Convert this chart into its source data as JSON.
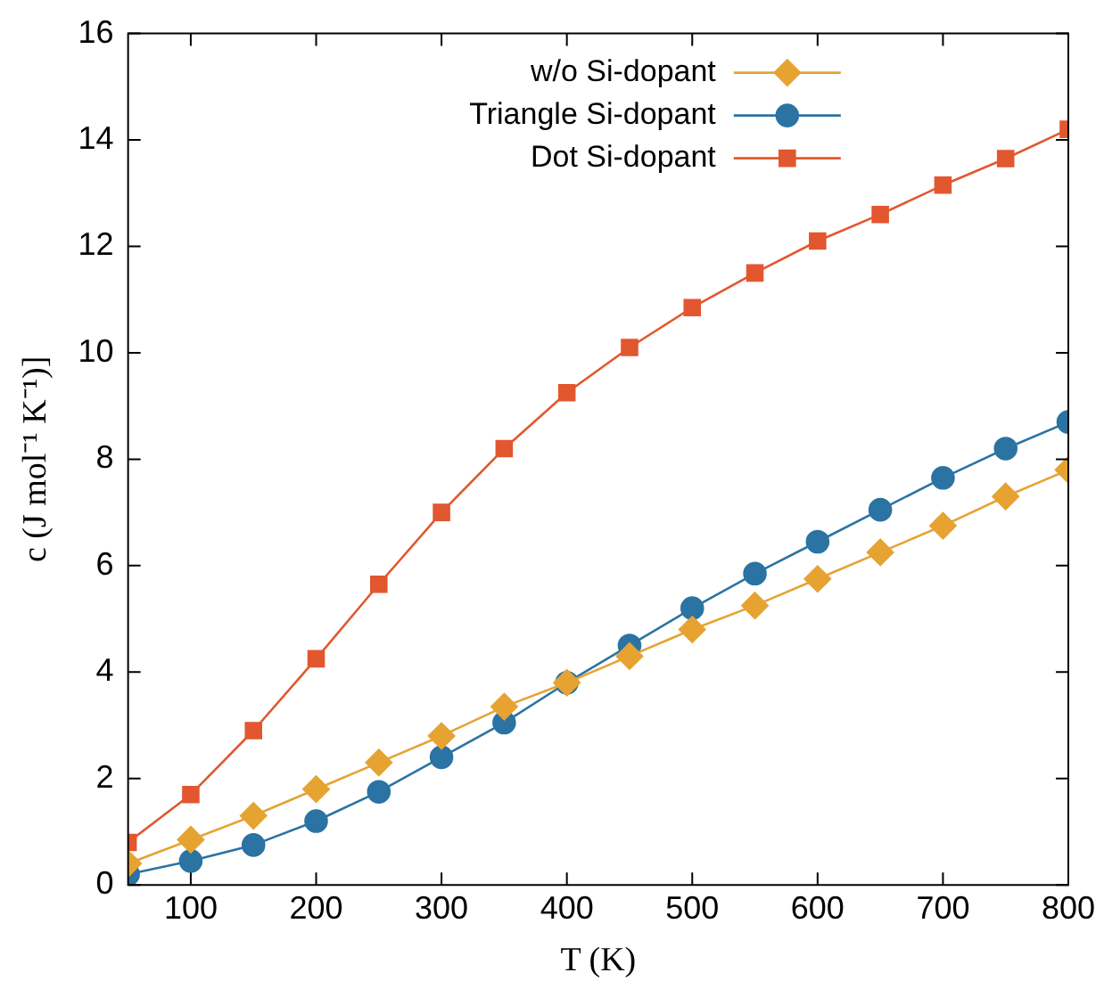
{
  "chart_data": {
    "type": "line",
    "xlabel": "T (K)",
    "ylabel": "c (J mol⁻¹ K⁻¹)]",
    "x": [
      50,
      100,
      150,
      200,
      250,
      300,
      350,
      400,
      450,
      500,
      550,
      600,
      650,
      700,
      750,
      800
    ],
    "series": [
      {
        "name": "w/o Si-dopant",
        "color": "#e6a332",
        "marker": "diamond",
        "values": [
          0.4,
          0.85,
          1.3,
          1.8,
          2.3,
          2.8,
          3.35,
          3.8,
          4.3,
          4.8,
          5.25,
          5.75,
          6.25,
          6.75,
          7.3,
          7.8
        ]
      },
      {
        "name": "Triangle Si-dopant",
        "color": "#2b73a3",
        "marker": "circle",
        "values": [
          0.2,
          0.45,
          0.75,
          1.2,
          1.75,
          2.4,
          3.05,
          3.8,
          4.5,
          5.2,
          5.85,
          6.45,
          7.05,
          7.65,
          8.2,
          8.7
        ]
      },
      {
        "name": "Dot Si-dopant",
        "color": "#e2572f",
        "marker": "square",
        "values": [
          0.8,
          1.7,
          2.9,
          4.25,
          5.65,
          7.0,
          8.2,
          9.25,
          10.1,
          10.85,
          11.5,
          12.1,
          12.6,
          13.15,
          13.65,
          14.2
        ]
      }
    ],
    "xlim": [
      50,
      800
    ],
    "xticks": [
      100,
      200,
      300,
      400,
      500,
      600,
      700,
      800
    ],
    "ylim": [
      0,
      16
    ],
    "yticks": [
      0,
      2,
      4,
      6,
      8,
      10,
      12,
      14,
      16
    ],
    "grid": false,
    "legend": "top",
    "line_style": "solid"
  }
}
